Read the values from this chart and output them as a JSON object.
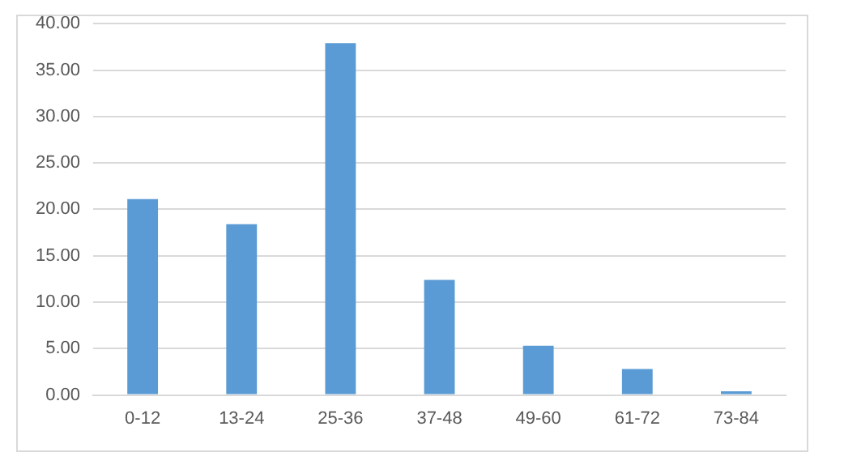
{
  "chart_data": {
    "type": "bar",
    "categories": [
      "0-12",
      "13-24",
      "25-36",
      "37-48",
      "49-60",
      "61-72",
      "73-84"
    ],
    "values": [
      21.1,
      18.4,
      37.9,
      12.4,
      5.3,
      2.8,
      0.4
    ],
    "color": "#5b9bd5",
    "ylim": [
      0,
      40
    ],
    "yticks": [
      {
        "value": 0,
        "label": "0.00"
      },
      {
        "value": 5,
        "label": "5.00"
      },
      {
        "value": 10,
        "label": "10.00"
      },
      {
        "value": 15,
        "label": "15.00"
      },
      {
        "value": 20,
        "label": "20.00"
      },
      {
        "value": 25,
        "label": "25.00"
      },
      {
        "value": 30,
        "label": "30.00"
      },
      {
        "value": 35,
        "label": "35.00"
      },
      {
        "value": 40,
        "label": "40.00"
      }
    ],
    "grid": "y",
    "legend": false
  }
}
